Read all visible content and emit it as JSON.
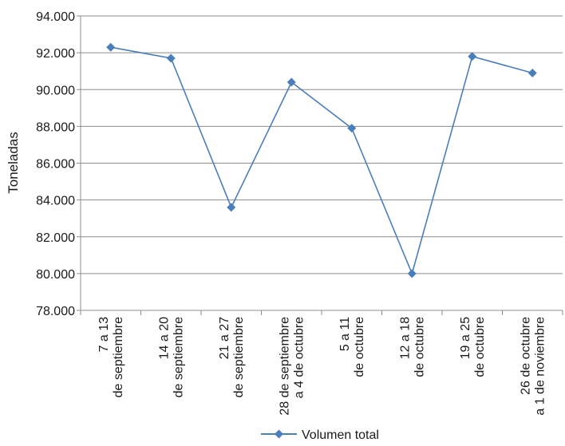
{
  "chart_data": {
    "type": "line",
    "title": "",
    "xlabel": "",
    "ylabel": "Toneladas",
    "ylim": [
      78000,
      94000
    ],
    "y_ticks": [
      78000,
      80000,
      82000,
      84000,
      86000,
      88000,
      90000,
      92000,
      94000
    ],
    "y_tick_labels": [
      "78.000",
      "80.000",
      "82.000",
      "84.000",
      "86.000",
      "88.000",
      "90.000",
      "92.000",
      "94.000"
    ],
    "grid": true,
    "legend_position": "bottom",
    "categories": [
      [
        "7 a 13",
        "de septiembre"
      ],
      [
        "14 a 20",
        "de septiembre"
      ],
      [
        "21 a 27",
        "de septiembre"
      ],
      [
        "28 de septiembre",
        "a  4 de octubre"
      ],
      [
        "5 a 11",
        "de octubre"
      ],
      [
        "12 a 18",
        "de octubre"
      ],
      [
        "19 a 25",
        "de octubre"
      ],
      [
        "26 de octubre",
        "a 1 de noviembre"
      ]
    ],
    "series": [
      {
        "name": "Volumen total",
        "color": "#4a7ebb",
        "marker": "diamond",
        "values": [
          92300,
          91700,
          83600,
          90400,
          87900,
          80000,
          91800,
          90900
        ]
      }
    ]
  }
}
